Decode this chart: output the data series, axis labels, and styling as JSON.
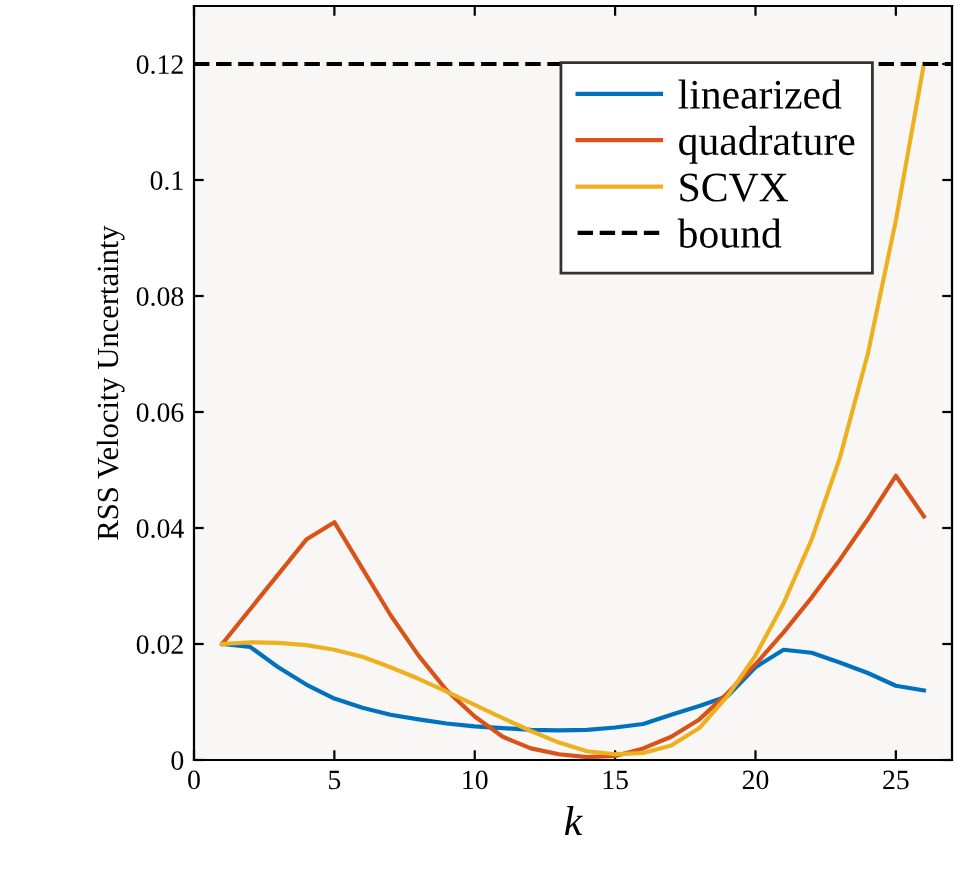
{
  "chart_data": {
    "type": "line",
    "xlabel": "k",
    "ylabel": "RSS Velocity Uncertainty",
    "x": [
      1,
      2,
      3,
      4,
      5,
      6,
      7,
      8,
      9,
      10,
      11,
      12,
      13,
      14,
      15,
      16,
      17,
      18,
      19,
      20,
      21,
      22,
      23,
      24,
      25,
      26
    ],
    "series": [
      {
        "name": "linearized",
        "color": "#0072bd",
        "values": [
          0.02,
          0.0195,
          0.016,
          0.013,
          0.0106,
          0.009,
          0.0078,
          0.007,
          0.0063,
          0.0058,
          0.0055,
          0.0052,
          0.0051,
          0.0052,
          0.0056,
          0.0062,
          0.0078,
          0.0093,
          0.011,
          0.016,
          0.019,
          0.0185,
          0.0168,
          0.015,
          0.0128,
          0.012
        ]
      },
      {
        "name": "quadrature",
        "color": "#d95319",
        "values": [
          0.02,
          0.026,
          0.032,
          0.038,
          0.041,
          0.033,
          0.025,
          0.018,
          0.012,
          0.0075,
          0.004,
          0.002,
          0.001,
          0.0005,
          0.0007,
          0.002,
          0.004,
          0.007,
          0.0115,
          0.0165,
          0.022,
          0.028,
          0.0345,
          0.0415,
          0.049,
          0.042
        ]
      },
      {
        "name": "SCVX",
        "color": "#edb120",
        "values": [
          0.02,
          0.0203,
          0.0202,
          0.0198,
          0.019,
          0.0178,
          0.016,
          0.014,
          0.0118,
          0.0095,
          0.0072,
          0.005,
          0.003,
          0.0015,
          0.001,
          0.0012,
          0.0025,
          0.0055,
          0.011,
          0.018,
          0.027,
          0.038,
          0.052,
          0.07,
          0.093,
          0.12
        ]
      }
    ],
    "ref_lines": [
      {
        "axis": "y",
        "value": 0.12,
        "label": "bound",
        "color": "#000000",
        "line_style": "dashed"
      }
    ],
    "xlim": [
      0,
      27
    ],
    "xticks": [
      0,
      5,
      10,
      15,
      20,
      25
    ],
    "ylim": [
      0,
      0.13
    ],
    "yticks": [
      0,
      0.02,
      0.04,
      0.06,
      0.08,
      0.1,
      0.12
    ],
    "legend": "top right",
    "grid": false,
    "line_style": "solid",
    "marker": "none"
  }
}
